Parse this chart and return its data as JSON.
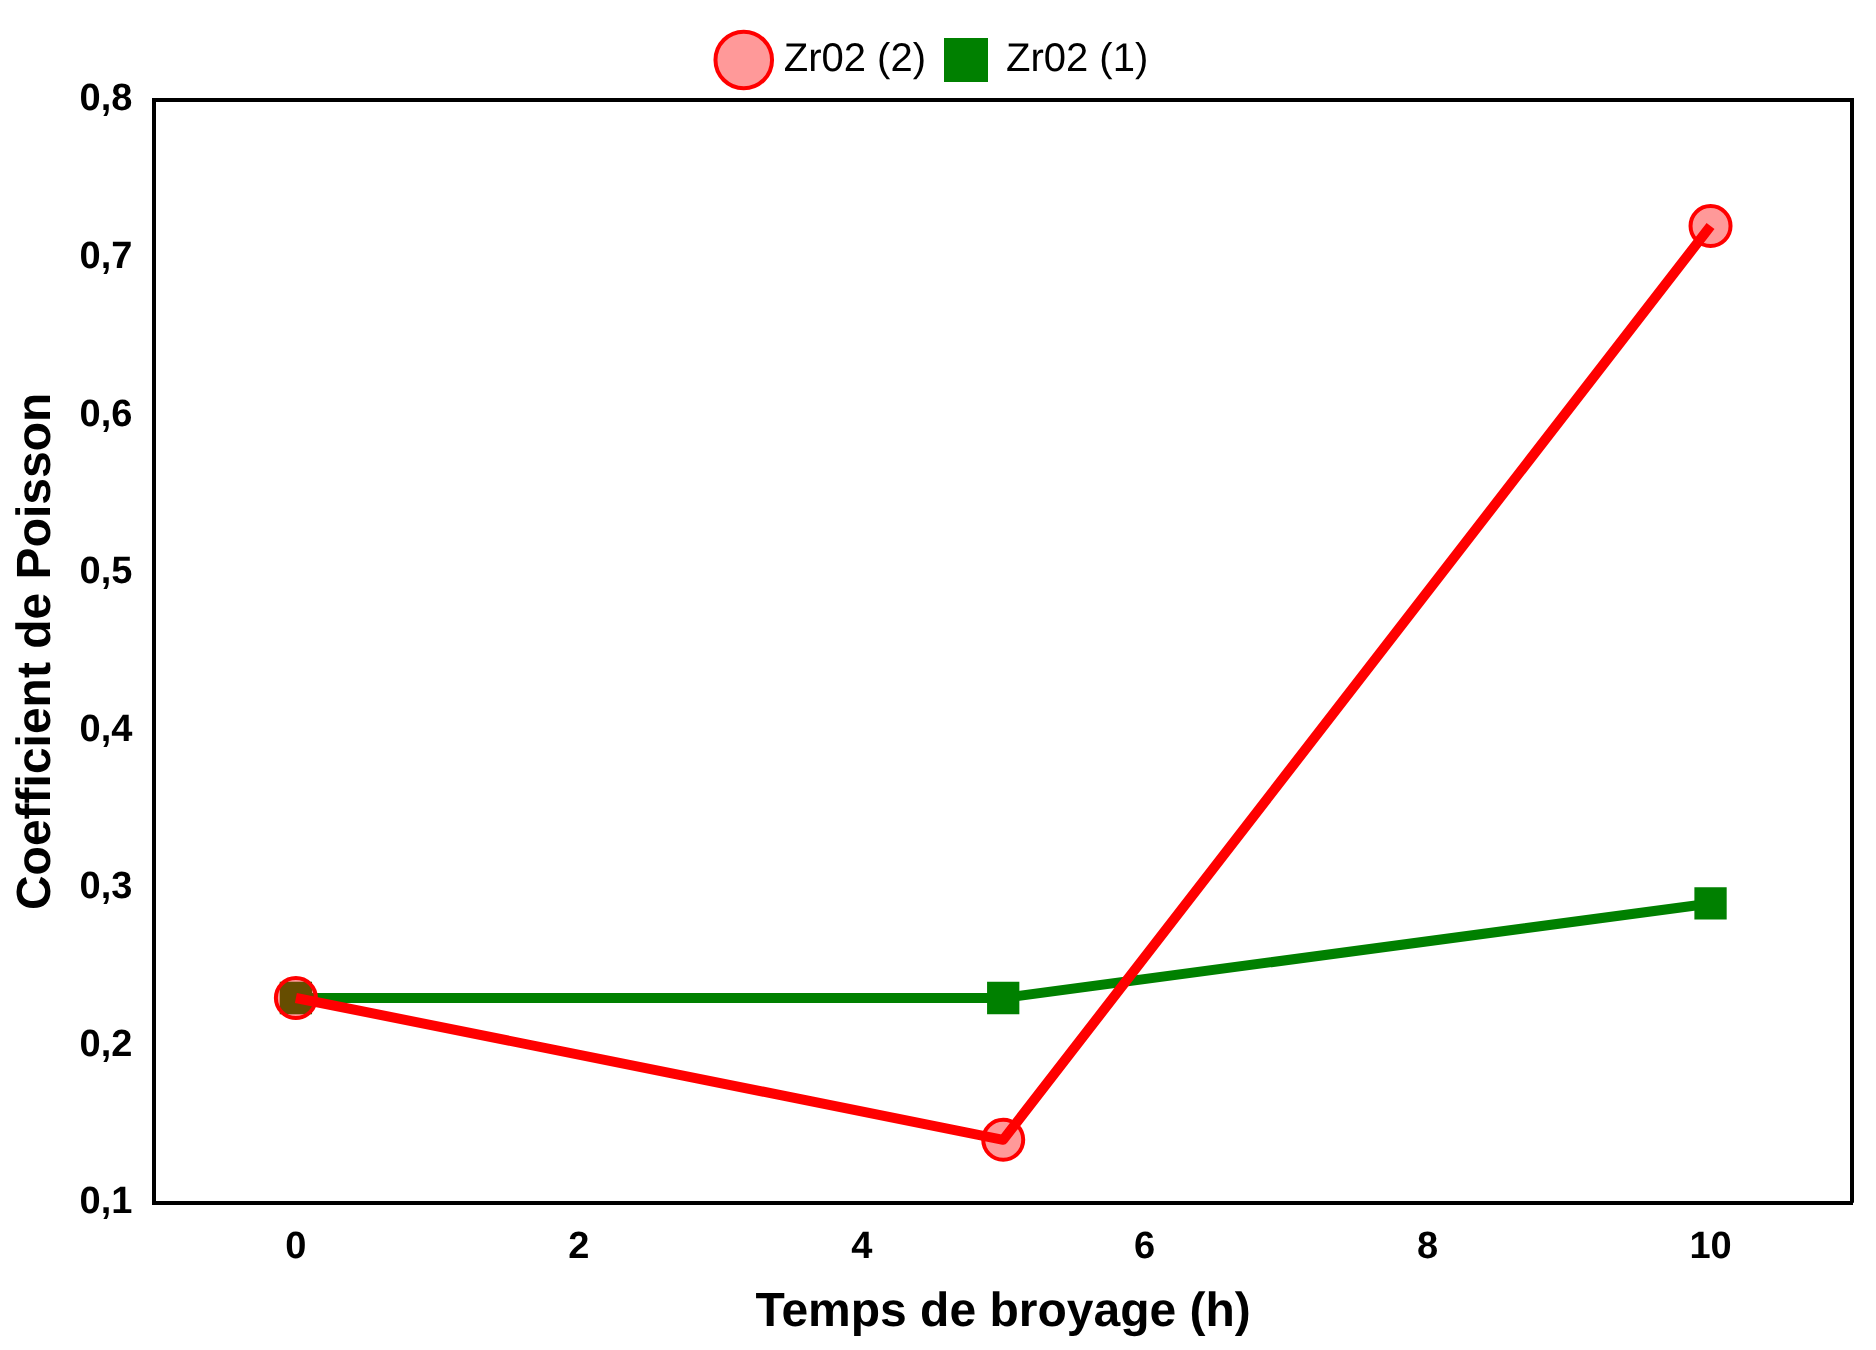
{
  "chart_data": {
    "type": "line",
    "xlabel": "Temps de broyage (h)",
    "ylabel": "Coefficient de Poisson",
    "x": [
      0,
      5,
      10
    ],
    "series": [
      {
        "name": "Zr02 (1)",
        "color": "#008000",
        "values": [
          0.23,
          0.23,
          0.29
        ],
        "marker": "square"
      },
      {
        "name": "Zr02 (2)",
        "color": "#ff0000",
        "values": [
          0.23,
          0.14,
          0.72
        ],
        "marker": "circle"
      }
    ],
    "xlim": [
      -1,
      11
    ],
    "xticks": [
      0,
      2,
      4,
      6,
      8,
      10
    ],
    "ylim": [
      0.1,
      0.8
    ],
    "yticks": [
      {
        "value": 0.1,
        "label": "0,1"
      },
      {
        "value": 0.2,
        "label": "0,2"
      },
      {
        "value": 0.3,
        "label": "0,3"
      },
      {
        "value": 0.4,
        "label": "0,4"
      },
      {
        "value": 0.5,
        "label": "0,5"
      },
      {
        "value": 0.6,
        "label": "0,6"
      },
      {
        "value": 0.7,
        "label": "0,7"
      },
      {
        "value": 0.8,
        "label": "0,8"
      }
    ],
    "grid": false,
    "legend": "top"
  }
}
